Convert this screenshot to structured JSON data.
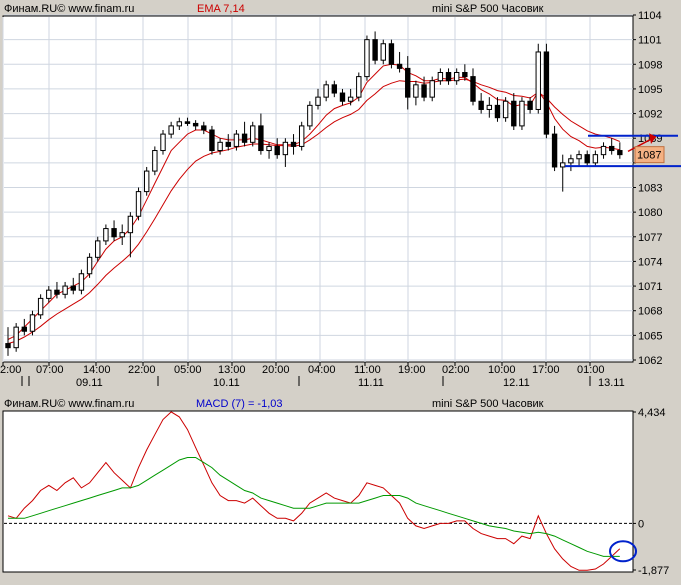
{
  "colors": {
    "background": "#d4d0c8",
    "plot_bg": "#ffffff",
    "grid": "#cfd6e0",
    "candle": "#000000",
    "ema_line": "#cc0000",
    "macd_line": "#cc0000",
    "signal_line": "#009900",
    "annotation": "#0022cc",
    "price_marker": "#f4b183"
  },
  "chart_data": [
    {
      "type": "candlestick",
      "header": {
        "source": "Финам.RU©  www.finam.ru",
        "indicator": "EMA 7,14",
        "instrument": "mini S&P 500 Часовик"
      },
      "y_ticks": [
        1104,
        1101,
        1098,
        1095,
        1092,
        1089,
        1086,
        1083,
        1080,
        1077,
        1074,
        1071,
        1068,
        1065,
        1062
      ],
      "y_tick_labels": [
        "1104",
        "1101",
        "1098",
        "1095",
        "1092",
        "1089",
        "",
        "1083",
        "1080",
        "1077",
        "1074",
        "1071",
        "1068",
        "1065",
        "1062"
      ],
      "ylim": [
        1062,
        1104
      ],
      "time_labels": [
        "2:00",
        "07:00",
        "14:00",
        "22:00",
        "05:00",
        "13:00",
        "20:00",
        "04:00",
        "11:00",
        "19:00",
        "02:00",
        "10:00",
        "17:00",
        "01:00"
      ],
      "date_labels": [
        "09.11",
        "10.11",
        "11.11",
        "12.11",
        "13.11"
      ],
      "last_price_label": "1087",
      "candles": [
        [
          1064,
          1066,
          1062.5,
          1063.5
        ],
        [
          1063.5,
          1066.5,
          1063,
          1066
        ],
        [
          1066,
          1067,
          1065,
          1065.5
        ],
        [
          1065.5,
          1068,
          1065,
          1067.5
        ],
        [
          1067.5,
          1070,
          1067,
          1069.5
        ],
        [
          1069.5,
          1071,
          1069,
          1070.5
        ],
        [
          1070.5,
          1071.5,
          1069.5,
          1070
        ],
        [
          1070,
          1071.5,
          1069.5,
          1071
        ],
        [
          1071,
          1072,
          1070,
          1070.5
        ],
        [
          1070.5,
          1073,
          1070,
          1072.5
        ],
        [
          1072.5,
          1075,
          1072,
          1074.5
        ],
        [
          1074.5,
          1077,
          1074,
          1076.5
        ],
        [
          1076.5,
          1078.5,
          1076,
          1078
        ],
        [
          1078,
          1079,
          1076.5,
          1077
        ],
        [
          1077,
          1078.5,
          1076,
          1077.5
        ],
        [
          1077.5,
          1080,
          1074.5,
          1079.5
        ],
        [
          1079.5,
          1083,
          1079,
          1082.5
        ],
        [
          1082.5,
          1085.5,
          1082,
          1085
        ],
        [
          1085,
          1088,
          1084.5,
          1087.5
        ],
        [
          1087.5,
          1090,
          1087,
          1089.5
        ],
        [
          1089.5,
          1091,
          1089,
          1090.5
        ],
        [
          1090.5,
          1091.5,
          1090,
          1091
        ],
        [
          1091,
          1091.5,
          1090.5,
          1090.8
        ],
        [
          1090.8,
          1091.2,
          1090,
          1090.5
        ],
        [
          1090.5,
          1091,
          1089.5,
          1090
        ],
        [
          1090,
          1090.5,
          1087,
          1087.5
        ],
        [
          1087.5,
          1089,
          1087,
          1088.5
        ],
        [
          1088.5,
          1089.5,
          1087.5,
          1088
        ],
        [
          1088,
          1090,
          1087.5,
          1089.5
        ],
        [
          1089.5,
          1091,
          1088,
          1088.5
        ],
        [
          1088.5,
          1091,
          1088,
          1090.5
        ],
        [
          1090.5,
          1092,
          1087,
          1087.5
        ],
        [
          1087.5,
          1088.5,
          1086.5,
          1088
        ],
        [
          1088,
          1089,
          1086.5,
          1087
        ],
        [
          1087,
          1089,
          1085.5,
          1088.5
        ],
        [
          1088.5,
          1089.5,
          1087,
          1088
        ],
        [
          1088,
          1091,
          1087.5,
          1090.5
        ],
        [
          1090.5,
          1093.5,
          1090,
          1093
        ],
        [
          1093,
          1095,
          1092.5,
          1094
        ],
        [
          1094,
          1096,
          1093.5,
          1095.5
        ],
        [
          1095.5,
          1096,
          1094,
          1094.5
        ],
        [
          1094.5,
          1095,
          1093,
          1093.5
        ],
        [
          1093.5,
          1095,
          1093,
          1094
        ],
        [
          1094,
          1097,
          1093.5,
          1096.5
        ],
        [
          1096.5,
          1101.5,
          1096,
          1101
        ],
        [
          1101,
          1102,
          1098,
          1098.5
        ],
        [
          1098.5,
          1101,
          1098,
          1100.5
        ],
        [
          1100.5,
          1101,
          1097.5,
          1098
        ],
        [
          1098,
          1099.5,
          1097,
          1097.5
        ],
        [
          1097.5,
          1099,
          1092.5,
          1094
        ],
        [
          1094,
          1096,
          1093,
          1095.5
        ],
        [
          1095.5,
          1096.5,
          1093.5,
          1094
        ],
        [
          1094,
          1096.5,
          1093.5,
          1096
        ],
        [
          1096,
          1097.5,
          1095.5,
          1097
        ],
        [
          1097,
          1097.5,
          1095.5,
          1096
        ],
        [
          1096,
          1097.5,
          1095.5,
          1097
        ],
        [
          1097,
          1098,
          1096,
          1096.5
        ],
        [
          1096.5,
          1097.5,
          1093,
          1093.5
        ],
        [
          1093.5,
          1094.5,
          1092,
          1092.5
        ],
        [
          1092.5,
          1094,
          1091.5,
          1093
        ],
        [
          1093,
          1094,
          1091,
          1091.5
        ],
        [
          1091.5,
          1094,
          1091,
          1093.5
        ],
        [
          1093.5,
          1094.5,
          1090,
          1090.5
        ],
        [
          1090.5,
          1094,
          1090,
          1093.5
        ],
        [
          1093.5,
          1094,
          1092,
          1092.5
        ],
        [
          1092.5,
          1100.5,
          1092,
          1099.5
        ],
        [
          1099.5,
          1100.5,
          1089,
          1089.5
        ],
        [
          1089.5,
          1090.5,
          1085,
          1085.5
        ],
        [
          1085.5,
          1087,
          1082.5,
          1086
        ],
        [
          1086,
          1087,
          1085,
          1086.5
        ],
        [
          1086.5,
          1087.5,
          1085.5,
          1087
        ],
        [
          1087,
          1087.5,
          1085.5,
          1086
        ],
        [
          1086,
          1087.5,
          1085.5,
          1087
        ],
        [
          1087,
          1088.5,
          1086.5,
          1088
        ],
        [
          1088,
          1089,
          1087,
          1087.5
        ],
        [
          1087.5,
          1088.5,
          1086.5,
          1087
        ]
      ],
      "ema": [
        [
          1064.5,
          1065,
          1066,
          1067,
          1068,
          1069,
          1070,
          1070.5,
          1071,
          1071.5,
          1072.5,
          1074,
          1075.5,
          1076.5,
          1077,
          1078,
          1079.5,
          1081.5,
          1083.5,
          1085.5,
          1087.5,
          1088.5,
          1089.5,
          1090,
          1090,
          1089.5,
          1089,
          1088.8,
          1088.8,
          1088.8,
          1089,
          1088.8,
          1088.5,
          1088.2,
          1088.2,
          1088.2,
          1088.6,
          1089.5,
          1090.6,
          1091.8,
          1092.6,
          1093,
          1093.3,
          1094,
          1095.8,
          1096.8,
          1097.8,
          1098,
          1097.9,
          1097,
          1096.6,
          1096,
          1096,
          1096.3,
          1096.2,
          1096.4,
          1096.4,
          1095.7,
          1094.9,
          1094.4,
          1093.7,
          1093.6,
          1092.9,
          1093.1,
          1093,
          1094.7,
          1093.4,
          1091.4,
          1090.1,
          1089.2,
          1088.7,
          1088,
          1087.8,
          1087.9,
          1087.8,
          1087.6
        ],
        [
          1064,
          1064.3,
          1064.8,
          1065.4,
          1066.1,
          1066.9,
          1067.6,
          1068.2,
          1068.8,
          1069.4,
          1070.2,
          1071.2,
          1072.3,
          1073.2,
          1074,
          1074.9,
          1076.1,
          1077.6,
          1079.2,
          1080.9,
          1082.6,
          1084,
          1085.2,
          1086.2,
          1086.8,
          1087.2,
          1087.4,
          1087.6,
          1087.9,
          1088.1,
          1088.3,
          1088.3,
          1088.2,
          1088.1,
          1088.1,
          1088,
          1088.2,
          1088.8,
          1089.5,
          1090.3,
          1091,
          1091.5,
          1091.9,
          1092.5,
          1093.6,
          1094.4,
          1095.3,
          1095.7,
          1096,
          1095.9,
          1095.9,
          1095.7,
          1095.8,
          1096,
          1096,
          1096.1,
          1096.2,
          1095.9,
          1095.5,
          1095.2,
          1094.8,
          1094.6,
          1094.2,
          1094.1,
          1093.9,
          1094.6,
          1093.9,
          1092.8,
          1091.9,
          1091.1,
          1090.5,
          1089.9,
          1089.5,
          1089.3,
          1089,
          1088.6
        ]
      ]
    },
    {
      "type": "line",
      "header": {
        "source": "Финам.RU©  www.finam.ru",
        "indicator": "MACD (7) = -1,03",
        "instrument": "mini S&P 500 Часовик"
      },
      "y_ticks": [
        4.434,
        0,
        -1.877
      ],
      "y_tick_labels": [
        "4,434",
        "0",
        "-1,877"
      ],
      "ylim": [
        -1.877,
        4.434
      ],
      "zero_line": 0,
      "series": [
        {
          "values": [
            0.3,
            0.2,
            0.6,
            0.9,
            1.3,
            1.5,
            1.3,
            1.6,
            1.8,
            1.4,
            1.6,
            2.0,
            2.4,
            2.0,
            1.7,
            1.4,
            2.2,
            2.9,
            3.5,
            4.1,
            4.4,
            4.2,
            3.7,
            3.0,
            2.3,
            1.6,
            1.1,
            0.9,
            0.9,
            0.8,
            1.0,
            0.7,
            0.4,
            0.2,
            0.2,
            0.1,
            0.4,
            0.8,
            1.0,
            1.2,
            1.0,
            0.9,
            0.8,
            1.1,
            1.6,
            1.5,
            1.4,
            1.1,
            0.8,
            0.2,
            -0.1,
            -0.2,
            -0.1,
            0.0,
            0.0,
            0.1,
            0.1,
            -0.2,
            -0.4,
            -0.5,
            -0.6,
            -0.6,
            -0.8,
            -0.5,
            -0.6,
            0.3,
            -0.4,
            -1.0,
            -1.4,
            -1.7,
            -1.85,
            -1.85,
            -1.8,
            -1.6,
            -1.3,
            -1.0
          ]
        },
        {
          "values": [
            0.2,
            0.2,
            0.2,
            0.3,
            0.4,
            0.5,
            0.6,
            0.7,
            0.8,
            0.9,
            1.0,
            1.1,
            1.2,
            1.3,
            1.4,
            1.4,
            1.5,
            1.7,
            1.9,
            2.1,
            2.3,
            2.5,
            2.6,
            2.6,
            2.4,
            2.2,
            1.9,
            1.7,
            1.5,
            1.3,
            1.2,
            1.0,
            0.9,
            0.8,
            0.7,
            0.6,
            0.6,
            0.6,
            0.7,
            0.8,
            0.8,
            0.8,
            0.8,
            0.8,
            0.9,
            1.0,
            1.1,
            1.1,
            1.1,
            1.0,
            0.8,
            0.7,
            0.6,
            0.5,
            0.4,
            0.3,
            0.2,
            0.1,
            0.0,
            -0.1,
            -0.15,
            -0.2,
            -0.3,
            -0.35,
            -0.4,
            -0.35,
            -0.4,
            -0.5,
            -0.65,
            -0.8,
            -0.95,
            -1.1,
            -1.2,
            -1.3,
            -1.3,
            -1.3
          ]
        }
      ]
    }
  ]
}
